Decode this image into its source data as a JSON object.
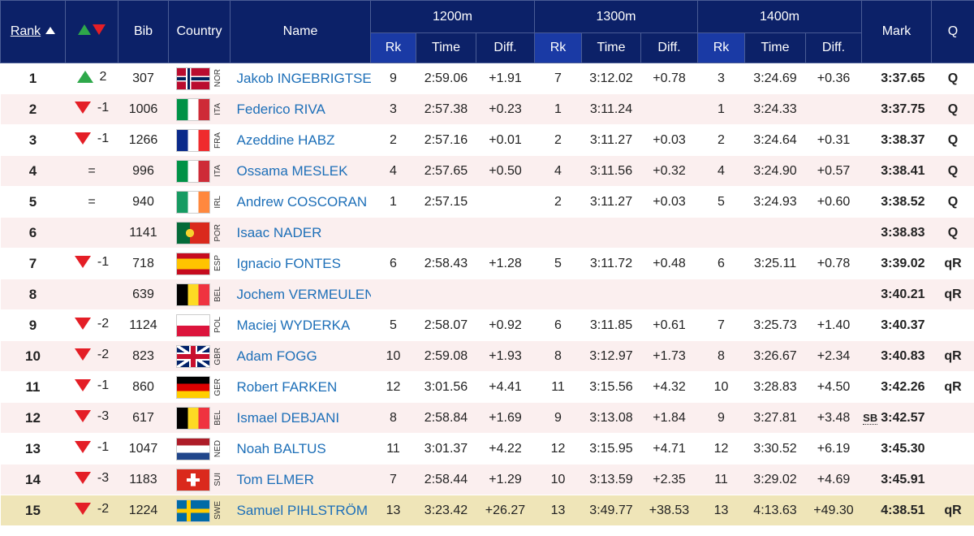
{
  "header": {
    "rank": "Rank",
    "bib": "Bib",
    "country": "Country",
    "name": "Name",
    "mark": "Mark",
    "q": "Q",
    "splits": [
      {
        "label": "1200m",
        "rk": "Rk",
        "time": "Time",
        "diff": "Diff."
      },
      {
        "label": "1300m",
        "rk": "Rk",
        "time": "Time",
        "diff": "Diff."
      },
      {
        "label": "1400m",
        "rk": "Rk",
        "time": "Time",
        "diff": "Diff."
      }
    ]
  },
  "colors": {
    "header_bg": "#0c2168",
    "subheader_bg": "#1a3aa5",
    "up": "#2ea84a",
    "down": "#e41e26",
    "name_link": "#1d6fb8",
    "highlight_row": "#efe5b8",
    "alt_row": "#fbefef"
  },
  "rows": [
    {
      "rank": "1",
      "dir": "up",
      "change": "2",
      "bib": "307",
      "code": "NOR",
      "flag": "nor-flag",
      "name": "Jakob INGEBRIGTSEN",
      "s": [
        [
          "9",
          "2:59.06",
          "+1.91"
        ],
        [
          "7",
          "3:12.02",
          "+0.78"
        ],
        [
          "3",
          "3:24.69",
          "+0.36"
        ]
      ],
      "sb": "",
      "mark": "3:37.65",
      "q": "Q"
    },
    {
      "rank": "2",
      "dir": "down",
      "change": "-1",
      "bib": "1006",
      "code": "ITA",
      "flag": "ita-flag",
      "name": "Federico RIVA",
      "s": [
        [
          "3",
          "2:57.38",
          "+0.23"
        ],
        [
          "1",
          "3:11.24",
          ""
        ],
        [
          "1",
          "3:24.33",
          ""
        ]
      ],
      "sb": "",
      "mark": "3:37.75",
      "q": "Q"
    },
    {
      "rank": "3",
      "dir": "down",
      "change": "-1",
      "bib": "1266",
      "code": "FRA",
      "flag": "fra-flag",
      "name": "Azeddine HABZ",
      "s": [
        [
          "2",
          "2:57.16",
          "+0.01"
        ],
        [
          "2",
          "3:11.27",
          "+0.03"
        ],
        [
          "2",
          "3:24.64",
          "+0.31"
        ]
      ],
      "sb": "",
      "mark": "3:38.37",
      "q": "Q"
    },
    {
      "rank": "4",
      "dir": "eq",
      "change": "=",
      "bib": "996",
      "code": "ITA",
      "flag": "ita-flag",
      "name": "Ossama MESLEK",
      "s": [
        [
          "4",
          "2:57.65",
          "+0.50"
        ],
        [
          "4",
          "3:11.56",
          "+0.32"
        ],
        [
          "4",
          "3:24.90",
          "+0.57"
        ]
      ],
      "sb": "",
      "mark": "3:38.41",
      "q": "Q"
    },
    {
      "rank": "5",
      "dir": "eq",
      "change": "=",
      "bib": "940",
      "code": "IRL",
      "flag": "irl-flag",
      "name": "Andrew COSCORAN",
      "s": [
        [
          "1",
          "2:57.15",
          ""
        ],
        [
          "2",
          "3:11.27",
          "+0.03"
        ],
        [
          "5",
          "3:24.93",
          "+0.60"
        ]
      ],
      "sb": "",
      "mark": "3:38.52",
      "q": "Q"
    },
    {
      "rank": "6",
      "dir": "none",
      "change": "",
      "bib": "1141",
      "code": "POR",
      "flag": "por-flag",
      "name": "Isaac NADER",
      "s": [
        [
          "",
          "",
          ""
        ],
        [
          "",
          "",
          ""
        ],
        [
          "",
          "",
          ""
        ]
      ],
      "sb": "",
      "mark": "3:38.83",
      "q": "Q"
    },
    {
      "rank": "7",
      "dir": "down",
      "change": "-1",
      "bib": "718",
      "code": "ESP",
      "flag": "esp-flag",
      "name": "Ignacio FONTES",
      "s": [
        [
          "6",
          "2:58.43",
          "+1.28"
        ],
        [
          "5",
          "3:11.72",
          "+0.48"
        ],
        [
          "6",
          "3:25.11",
          "+0.78"
        ]
      ],
      "sb": "",
      "mark": "3:39.02",
      "q": "qR"
    },
    {
      "rank": "8",
      "dir": "none",
      "change": "",
      "bib": "639",
      "code": "BEL",
      "flag": "bel-flag",
      "name": "Jochem VERMEULEN",
      "s": [
        [
          "",
          "",
          ""
        ],
        [
          "",
          "",
          ""
        ],
        [
          "",
          "",
          ""
        ]
      ],
      "sb": "",
      "mark": "3:40.21",
      "q": "qR"
    },
    {
      "rank": "9",
      "dir": "down",
      "change": "-2",
      "bib": "1124",
      "code": "POL",
      "flag": "pol-flag",
      "name": "Maciej WYDERKA",
      "s": [
        [
          "5",
          "2:58.07",
          "+0.92"
        ],
        [
          "6",
          "3:11.85",
          "+0.61"
        ],
        [
          "7",
          "3:25.73",
          "+1.40"
        ]
      ],
      "sb": "",
      "mark": "3:40.37",
      "q": ""
    },
    {
      "rank": "10",
      "dir": "down",
      "change": "-2",
      "bib": "823",
      "code": "GBR",
      "flag": "gbr-flag",
      "name": "Adam FOGG",
      "s": [
        [
          "10",
          "2:59.08",
          "+1.93"
        ],
        [
          "8",
          "3:12.97",
          "+1.73"
        ],
        [
          "8",
          "3:26.67",
          "+2.34"
        ]
      ],
      "sb": "",
      "mark": "3:40.83",
      "q": "qR"
    },
    {
      "rank": "11",
      "dir": "down",
      "change": "-1",
      "bib": "860",
      "code": "GER",
      "flag": "ger-flag",
      "name": "Robert FARKEN",
      "s": [
        [
          "12",
          "3:01.56",
          "+4.41"
        ],
        [
          "11",
          "3:15.56",
          "+4.32"
        ],
        [
          "10",
          "3:28.83",
          "+4.50"
        ]
      ],
      "sb": "",
      "mark": "3:42.26",
      "q": "qR"
    },
    {
      "rank": "12",
      "dir": "down",
      "change": "-3",
      "bib": "617",
      "code": "BEL",
      "flag": "bel-flag",
      "name": "Ismael DEBJANI",
      "s": [
        [
          "8",
          "2:58.84",
          "+1.69"
        ],
        [
          "9",
          "3:13.08",
          "+1.84"
        ],
        [
          "9",
          "3:27.81",
          "+3.48"
        ]
      ],
      "sb": "SB",
      "mark": "3:42.57",
      "q": ""
    },
    {
      "rank": "13",
      "dir": "down",
      "change": "-1",
      "bib": "1047",
      "code": "NED",
      "flag": "ned-flag",
      "name": "Noah BALTUS",
      "s": [
        [
          "11",
          "3:01.37",
          "+4.22"
        ],
        [
          "12",
          "3:15.95",
          "+4.71"
        ],
        [
          "12",
          "3:30.52",
          "+6.19"
        ]
      ],
      "sb": "",
      "mark": "3:45.30",
      "q": ""
    },
    {
      "rank": "14",
      "dir": "down",
      "change": "-3",
      "bib": "1183",
      "code": "SUI",
      "flag": "sui-flag",
      "name": "Tom ELMER",
      "s": [
        [
          "7",
          "2:58.44",
          "+1.29"
        ],
        [
          "10",
          "3:13.59",
          "+2.35"
        ],
        [
          "11",
          "3:29.02",
          "+4.69"
        ]
      ],
      "sb": "",
      "mark": "3:45.91",
      "q": ""
    },
    {
      "rank": "15",
      "dir": "down",
      "change": "-2",
      "bib": "1224",
      "code": "SWE",
      "flag": "swe-flag",
      "name": "Samuel PIHLSTRÖM",
      "s": [
        [
          "13",
          "3:23.42",
          "+26.27"
        ],
        [
          "13",
          "3:49.77",
          "+38.53"
        ],
        [
          "13",
          "4:13.63",
          "+49.30"
        ]
      ],
      "sb": "",
      "mark": "4:38.51",
      "q": "qR"
    }
  ]
}
